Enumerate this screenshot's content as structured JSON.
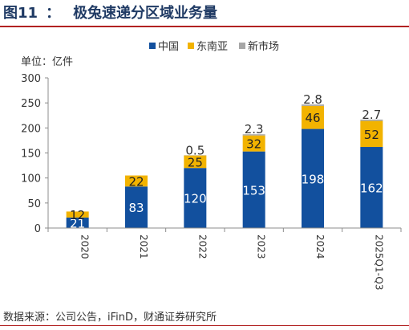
{
  "figure": {
    "label": "图11",
    "separator": "：",
    "title": "极兔速递分区域业务量",
    "source": "数据来源：公司公告，iFinD，财通证券研究所"
  },
  "colors": {
    "title": "#1f3a64",
    "rule": "#b22222",
    "china": "#12509e",
    "sea": "#f2b300",
    "new": "#a6a6a6"
  },
  "chart_data": {
    "type": "bar",
    "stacked": true,
    "unit_label": "单位：亿件",
    "categories": [
      "2020",
      "2021",
      "2022",
      "2023",
      "2024",
      "2025Q1-Q3"
    ],
    "series": [
      {
        "name": "中国",
        "values": [
          21,
          83,
          120,
          153,
          198,
          162
        ],
        "labels": [
          "21",
          "83",
          "120",
          "153",
          "198",
          "162"
        ]
      },
      {
        "name": "东南亚",
        "values": [
          12,
          22,
          25,
          32,
          46,
          52
        ],
        "labels": [
          "12",
          "22",
          "25",
          "32",
          "46",
          "52"
        ]
      },
      {
        "name": "新市场",
        "values": [
          0,
          0,
          0.5,
          2.3,
          2.8,
          2.7
        ],
        "labels": [
          "",
          "",
          "0.5",
          "2.3",
          "2.8",
          "2.7"
        ]
      }
    ],
    "ylim": [
      0,
      300
    ],
    "yticks": [
      "0",
      "50",
      "100",
      "150",
      "200",
      "250",
      "300"
    ],
    "legend_position": "top-right",
    "grid": false
  }
}
